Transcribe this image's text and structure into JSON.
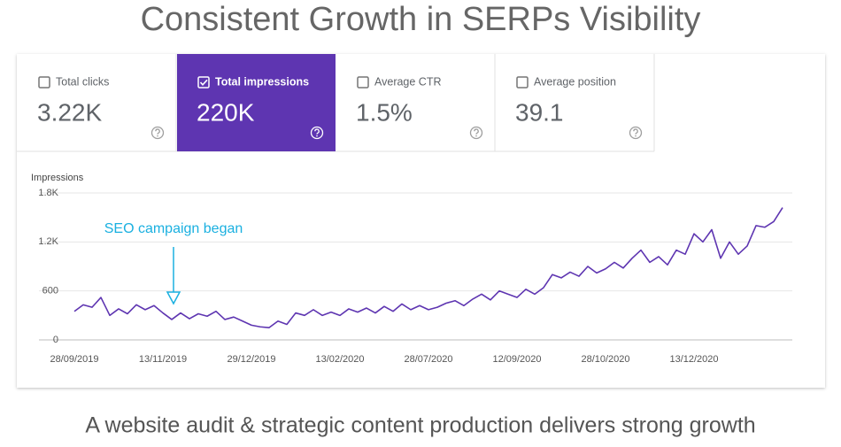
{
  "header": {
    "title": "Consistent Growth in SERPs Visibility"
  },
  "metrics": [
    {
      "label": "Total clicks",
      "value": "3.22K",
      "selected": false
    },
    {
      "label": "Total impressions",
      "value": "220K",
      "selected": true
    },
    {
      "label": "Average CTR",
      "value": "1.5%",
      "selected": false
    },
    {
      "label": "Average position",
      "value": "39.1",
      "selected": false
    }
  ],
  "chart_data": {
    "type": "line",
    "y_label": "Impressions",
    "annotation": "SEO campaign began",
    "categories": [
      "28/09/2019",
      null,
      null,
      null,
      null,
      null,
      null,
      null,
      null,
      null,
      "13/11/2019",
      null,
      null,
      null,
      null,
      null,
      null,
      null,
      null,
      null,
      "29/12/2019",
      null,
      null,
      null,
      null,
      null,
      null,
      null,
      null,
      null,
      "13/02/2020",
      null,
      null,
      null,
      null,
      null,
      null,
      null,
      null,
      null,
      "28/07/2020",
      null,
      null,
      null,
      null,
      null,
      null,
      null,
      null,
      null,
      "12/09/2020",
      null,
      null,
      null,
      null,
      null,
      null,
      null,
      null,
      null,
      "28/10/2020",
      null,
      null,
      null,
      null,
      null,
      null,
      null,
      null,
      null,
      "13/12/2020",
      null,
      null,
      null,
      null,
      null,
      null,
      null,
      null,
      null,
      null
    ],
    "series": [
      {
        "name": "Impressions",
        "color": "#5e35b1",
        "values": [
          350,
          430,
          400,
          520,
          300,
          380,
          320,
          430,
          370,
          420,
          330,
          250,
          330,
          260,
          320,
          290,
          350,
          250,
          280,
          230,
          180,
          160,
          150,
          230,
          190,
          330,
          300,
          370,
          300,
          340,
          300,
          380,
          340,
          390,
          330,
          410,
          350,
          440,
          370,
          420,
          370,
          400,
          450,
          480,
          420,
          500,
          560,
          490,
          600,
          560,
          520,
          620,
          560,
          640,
          800,
          760,
          830,
          780,
          900,
          820,
          870,
          950,
          880,
          1000,
          1100,
          950,
          1020,
          920,
          1100,
          1050,
          1300,
          1200,
          1350,
          1000,
          1200,
          1050,
          1150,
          1400,
          1380,
          1450,
          1620
        ]
      }
    ],
    "ylim": [
      0,
      1800
    ],
    "yticks": [
      0,
      600,
      {
        "value": 1200,
        "label": "1.2K"
      },
      {
        "value": 1800,
        "label": "1.8K"
      }
    ],
    "grid": true
  },
  "caption": "A website audit & strategic content production delivers strong growth"
}
